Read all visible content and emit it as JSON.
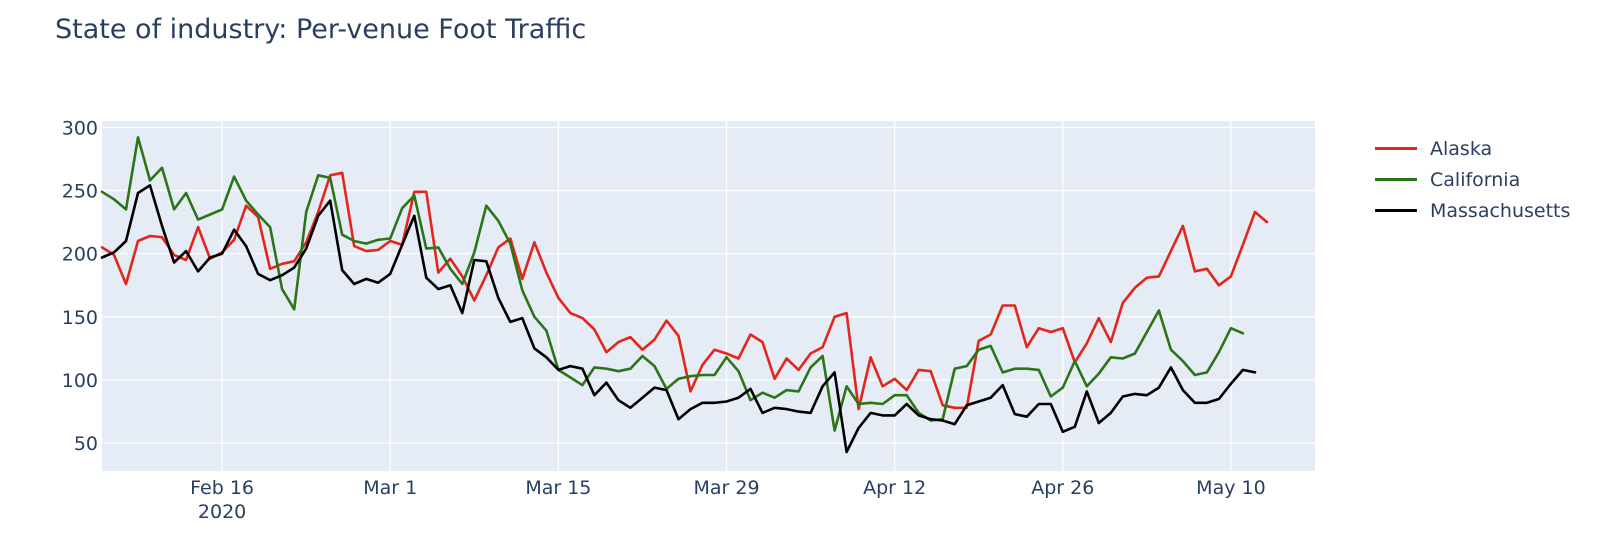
{
  "chart_data": {
    "type": "line",
    "title": "State of industry: Per-venue Foot Traffic",
    "xlabel": "",
    "ylabel": "",
    "x_range": [
      "2020-02-06",
      "2020-05-17"
    ],
    "ylim": [
      28,
      305
    ],
    "y_ticks": [
      50,
      100,
      150,
      200,
      250,
      300
    ],
    "x_ticks": [
      {
        "date": "2020-02-16",
        "label": "Feb 16",
        "sublabel": "2020"
      },
      {
        "date": "2020-03-01",
        "label": "Mar 1"
      },
      {
        "date": "2020-03-15",
        "label": "Mar 15"
      },
      {
        "date": "2020-03-29",
        "label": "Mar 29"
      },
      {
        "date": "2020-04-12",
        "label": "Apr 12"
      },
      {
        "date": "2020-04-26",
        "label": "Apr 26"
      },
      {
        "date": "2020-05-10",
        "label": "May 10"
      }
    ],
    "background": "#e5ecf6",
    "grid": true,
    "legend_position": "top-right",
    "start_date": "2020-02-06",
    "series": [
      {
        "name": "Alaska",
        "color": "#e3261b",
        "values": [
          205,
          199,
          176,
          210,
          214,
          213,
          199,
          195,
          221,
          196,
          201,
          211,
          238,
          229,
          188,
          192,
          194,
          209,
          233,
          262,
          264,
          206,
          202,
          203,
          210,
          207,
          249,
          249,
          185,
          196,
          182,
          163,
          183,
          205,
          212,
          180,
          209,
          185,
          165,
          153,
          149,
          140,
          122,
          130,
          134,
          124,
          132,
          147,
          135,
          91,
          112,
          124,
          121,
          117,
          136,
          130,
          101,
          117,
          108,
          121,
          126,
          150,
          153,
          77,
          118,
          95,
          101,
          92,
          108,
          107,
          80,
          78,
          78,
          131,
          136,
          159,
          159,
          126,
          141,
          138,
          141,
          114,
          129,
          149,
          130,
          161,
          173,
          181,
          182,
          202,
          222,
          186,
          188,
          175,
          182,
          207,
          233,
          225
        ]
      },
      {
        "name": "California",
        "color": "#2b7519",
        "values": [
          249,
          243,
          235,
          292,
          258,
          268,
          235,
          248,
          227,
          231,
          235,
          261,
          242,
          231,
          221,
          172,
          156,
          233,
          262,
          260,
          215,
          210,
          208,
          211,
          212,
          236,
          246,
          204,
          205,
          188,
          176,
          201,
          238,
          226,
          208,
          171,
          150,
          139,
          108,
          102,
          96,
          110,
          109,
          107,
          109,
          119,
          111,
          93,
          101,
          103,
          104,
          104,
          118,
          107,
          84,
          90,
          86,
          92,
          91,
          110,
          119,
          60,
          95,
          81,
          82,
          81,
          88,
          88,
          74,
          68,
          69,
          109,
          111,
          124,
          127,
          106,
          109,
          109,
          108,
          87,
          94,
          115,
          95,
          105,
          118,
          117,
          121,
          138,
          155,
          124,
          115,
          104,
          106,
          122,
          141,
          137
        ]
      },
      {
        "name": "Massachusetts",
        "color": "#000000",
        "values": [
          197,
          201,
          210,
          248,
          254,
          222,
          193,
          202,
          186,
          197,
          200,
          219,
          206,
          184,
          179,
          183,
          189,
          204,
          230,
          242,
          187,
          176,
          180,
          177,
          184,
          207,
          230,
          181,
          172,
          175,
          153,
          195,
          194,
          165,
          146,
          149,
          125,
          118,
          108,
          111,
          109,
          88,
          98,
          84,
          78,
          86,
          94,
          92,
          69,
          77,
          82,
          82,
          83,
          86,
          93,
          74,
          78,
          77,
          75,
          74,
          95,
          106,
          43,
          62,
          74,
          72,
          72,
          81,
          72,
          69,
          68,
          65,
          80,
          83,
          86,
          96,
          73,
          71,
          81,
          81,
          59,
          63,
          91,
          66,
          74,
          87,
          89,
          88,
          94,
          110,
          92,
          82,
          82,
          85,
          97,
          108,
          106
        ]
      }
    ]
  }
}
